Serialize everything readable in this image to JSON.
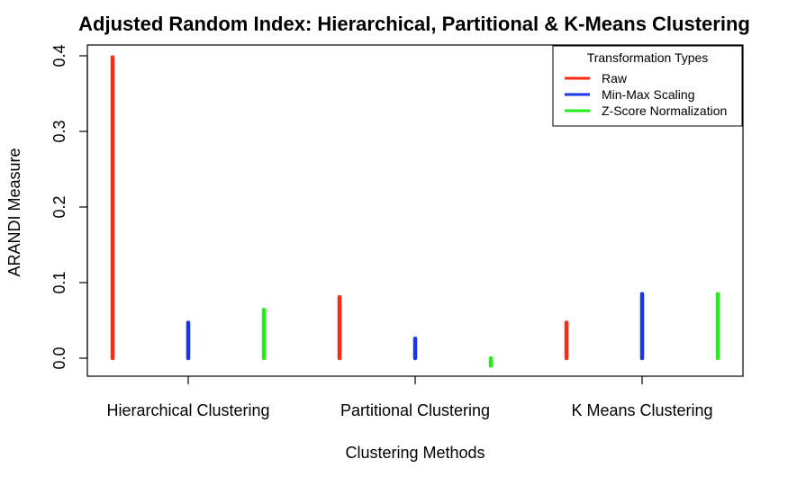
{
  "chart_data": {
    "type": "bar",
    "title": "Adjusted Random Index: Hierarchical, Partitional & K-Means Clustering",
    "xlabel": "Clustering Methods",
    "ylabel": "ARANDI Measure",
    "categories": [
      "Hierarchical Clustering",
      "Partitional Clustering",
      "K Means Clustering"
    ],
    "ylim": [
      -0.01,
      0.4
    ],
    "yticks": [
      "0.0",
      "0.1",
      "0.2",
      "0.3",
      "0.4"
    ],
    "yticks_values": [
      0,
      0.1,
      0.2,
      0.3,
      0.4
    ],
    "grid": false,
    "legend": {
      "title": "Transformation Types",
      "position": "top-right"
    },
    "series": [
      {
        "name": "Raw",
        "color": "#ff2a10",
        "values": [
          0.398,
          0.081,
          0.047
        ]
      },
      {
        "name": "Min-Max Scaling",
        "color": "#1836ee",
        "values": [
          0.047,
          0.026,
          0.085
        ]
      },
      {
        "name": "Z-Score Normalization",
        "color": "#22ee1a",
        "values": [
          0.064,
          -0.01,
          0.085
        ]
      }
    ]
  }
}
